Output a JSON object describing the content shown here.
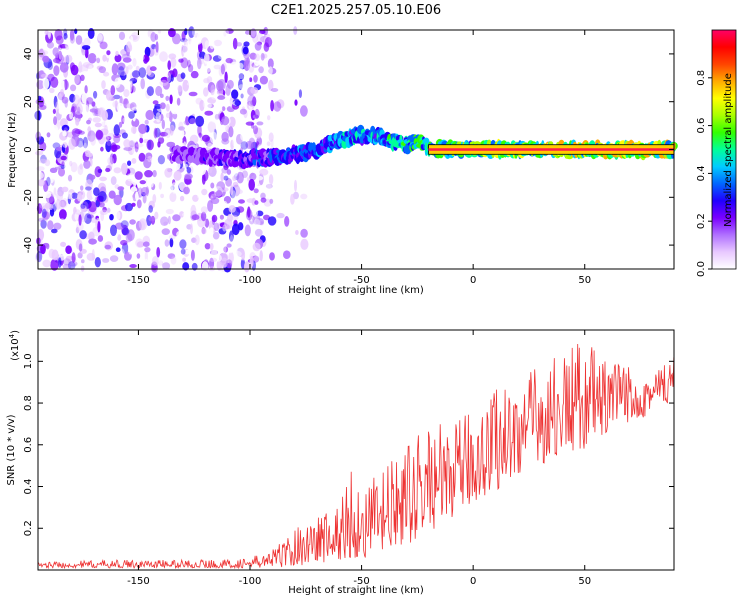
{
  "title": "C2E1.2025.257.05.10.E06",
  "chart_data": [
    {
      "type": "heatmap",
      "xlabel": "Height of straight line (km)",
      "ylabel": "Frequency (Hz)",
      "xlim": [
        -195,
        90
      ],
      "ylim": [
        -50,
        50
      ],
      "xticks": [
        -150,
        -100,
        -50,
        0,
        50
      ],
      "yticks": [
        -40,
        -20,
        0,
        20,
        40
      ],
      "colorbar": {
        "label": "Normalized spectral amplitude",
        "range": [
          0,
          1
        ],
        "ticks": [
          "0.0",
          "0.2",
          "0.4",
          "0.6",
          "0.8"
        ],
        "colors": [
          "#ffffff",
          "#e8c8ff",
          "#b070ff",
          "#7a00ff",
          "#2000ff",
          "#0066ff",
          "#00ccff",
          "#00ff99",
          "#33ff00",
          "#aaff00",
          "#ffff00",
          "#ffaa00",
          "#ff4400",
          "#ff0000",
          "#ff0066"
        ]
      },
      "ridge": {
        "x": [
          -135,
          -120,
          -100,
          -90,
          -80,
          -70,
          -60,
          -50,
          -40,
          -35,
          -30,
          -25,
          -20,
          -10,
          0,
          20,
          40,
          60,
          70,
          90
        ],
        "y": [
          -2,
          -3,
          -4,
          -3,
          -2,
          0,
          4,
          6,
          5,
          3,
          2,
          4,
          1,
          0,
          0,
          0,
          0,
          0,
          0,
          0
        ],
        "strong_line": {
          "x_start": -20,
          "x_end": 90,
          "y": 0
        }
      },
      "noise_region": {
        "x_start": -195,
        "x_end": -90,
        "y_range": [
          -50,
          50
        ]
      }
    },
    {
      "type": "line",
      "xlabel": "Height of straight line (km)",
      "ylabel": "SNR (10 * v/v)",
      "yscale_label": "(x10",
      "yscale_exponent": "4",
      "scale": 10000,
      "xlim": [
        -195,
        90
      ],
      "ylim": [
        0,
        1.15
      ],
      "xticks": [
        -150,
        -100,
        -50,
        0,
        50
      ],
      "yticks": [
        "0.2",
        "0.4",
        "0.6",
        "0.8",
        "1.0"
      ],
      "series": [
        {
          "name": "SNR",
          "color": "#ee3333",
          "envelope_x": [
            -195,
            -150,
            -110,
            -100,
            -90,
            -80,
            -70,
            -60,
            -55,
            -50,
            -40,
            -30,
            -20,
            -10,
            0,
            10,
            20,
            30,
            40,
            50,
            60,
            70,
            80,
            90
          ],
          "envelope_min": [
            0.01,
            0.01,
            0.01,
            0.01,
            0.01,
            0.02,
            0.03,
            0.04,
            0.05,
            0.05,
            0.08,
            0.12,
            0.18,
            0.25,
            0.32,
            0.38,
            0.45,
            0.5,
            0.55,
            0.58,
            0.65,
            0.7,
            0.75,
            0.78
          ],
          "envelope_max": [
            0.04,
            0.05,
            0.05,
            0.06,
            0.1,
            0.2,
            0.28,
            0.32,
            0.52,
            0.38,
            0.5,
            0.58,
            0.72,
            0.68,
            0.78,
            0.9,
            0.92,
            1.0,
            1.05,
            1.12,
            1.0,
            1.0,
            0.98,
            1.05
          ]
        }
      ]
    }
  ]
}
